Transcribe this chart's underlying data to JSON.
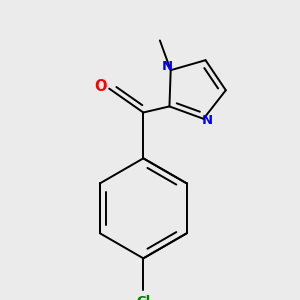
{
  "background_color": "#ebebeb",
  "figure_size": [
    3.0,
    3.0
  ],
  "dpi": 100,
  "atom_colors": {
    "O": "#ff0000",
    "N": "#0000ff",
    "Cl": "#008000",
    "C": "#000000"
  },
  "bond_lw": 1.4,
  "xlim": [
    -1.6,
    1.6
  ],
  "ylim": [
    -2.2,
    1.4
  ]
}
